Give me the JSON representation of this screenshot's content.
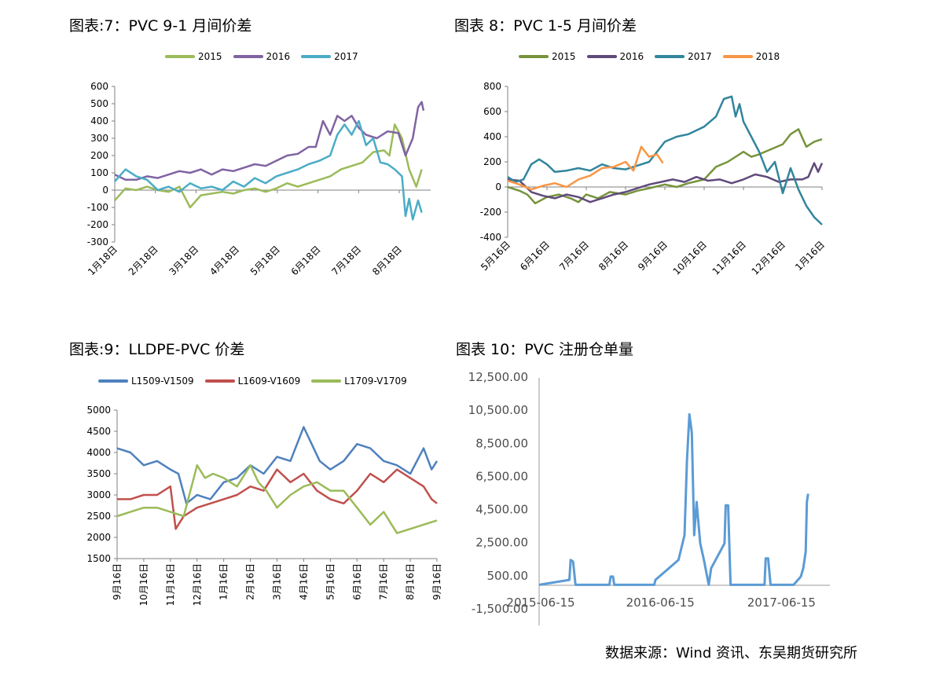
{
  "charts": [
    {
      "title": "图表:7：PVC 9-1 月间价差",
      "chart_data": {
        "type": "line",
        "yticks": [
          "600",
          "500",
          "400",
          "300",
          "200",
          "100",
          "0",
          "-100",
          "-200",
          "-300"
        ],
        "ylim": [
          -300,
          600
        ],
        "xticks": [
          "1月18日",
          "2月18日",
          "3月18日",
          "4月18日",
          "5月18日",
          "6月18日",
          "7月18日",
          "8月18日"
        ],
        "x_range": [
          0,
          8.8
        ],
        "series": [
          {
            "name": "2015",
            "color": "#9bbb59",
            "x": [
              0,
              0.3,
              0.6,
              0.9,
              1.2,
              1.5,
              1.8,
              2.1,
              2.4,
              2.7,
              3.0,
              3.3,
              3.6,
              3.9,
              4.2,
              4.5,
              4.8,
              5.1,
              5.4,
              5.7,
              6.0,
              6.3,
              6.6,
              6.9,
              7.2,
              7.5,
              7.65,
              7.8,
              8.0,
              8.2,
              8.4,
              8.55
            ],
            "values": [
              -60,
              10,
              0,
              20,
              0,
              -10,
              20,
              -100,
              -30,
              -20,
              -10,
              -20,
              0,
              10,
              -10,
              10,
              40,
              20,
              40,
              60,
              80,
              120,
              140,
              160,
              220,
              230,
              200,
              380,
              300,
              120,
              20,
              120
            ]
          },
          {
            "name": "2016",
            "color": "#8064a2",
            "x": [
              0,
              0.3,
              0.6,
              0.9,
              1.2,
              1.5,
              1.8,
              2.1,
              2.4,
              2.7,
              3.0,
              3.3,
              3.6,
              3.9,
              4.2,
              4.5,
              4.8,
              5.1,
              5.4,
              5.6,
              5.8,
              6.0,
              6.2,
              6.4,
              6.6,
              6.8,
              7.0,
              7.3,
              7.6,
              7.9,
              8.1,
              8.3,
              8.45,
              8.55,
              8.6
            ],
            "values": [
              90,
              60,
              60,
              80,
              70,
              90,
              110,
              100,
              120,
              90,
              120,
              110,
              130,
              150,
              140,
              170,
              200,
              210,
              250,
              250,
              400,
              320,
              430,
              400,
              430,
              360,
              320,
              300,
              340,
              330,
              200,
              300,
              480,
              510,
              460
            ]
          },
          {
            "name": "2017",
            "color": "#4bacc6",
            "x": [
              0,
              0.3,
              0.6,
              0.9,
              1.2,
              1.5,
              1.8,
              2.1,
              2.4,
              2.7,
              3.0,
              3.3,
              3.6,
              3.9,
              4.2,
              4.5,
              4.8,
              5.1,
              5.4,
              5.7,
              6.0,
              6.2,
              6.4,
              6.6,
              6.8,
              7.0,
              7.2,
              7.4,
              7.6,
              7.8,
              8.0,
              8.1,
              8.2,
              8.3,
              8.45,
              8.55
            ],
            "values": [
              50,
              120,
              80,
              60,
              0,
              20,
              -10,
              40,
              10,
              20,
              0,
              50,
              20,
              70,
              40,
              80,
              100,
              120,
              150,
              170,
              200,
              320,
              380,
              320,
              400,
              260,
              300,
              160,
              150,
              120,
              80,
              -150,
              -50,
              -170,
              -60,
              -130
            ]
          }
        ]
      }
    },
    {
      "title": "图表 8：PVC 1-5 月间价差",
      "chart_data": {
        "type": "line",
        "yticks": [
          "800",
          "600",
          "400",
          "200",
          "0",
          "-200",
          "-400"
        ],
        "ylim": [
          -400,
          800
        ],
        "xticks": [
          "5月16日",
          "6月16日",
          "7月16日",
          "8月16日",
          "9月16日",
          "10月16日",
          "11月16日",
          "12月16日",
          "1月16日"
        ],
        "x_range": [
          0,
          8
        ],
        "series": [
          {
            "name": "2015",
            "color": "#77933c",
            "x": [
              0,
              0.3,
              0.5,
              0.7,
              1.0,
              1.3,
              1.6,
              1.8,
              2.0,
              2.3,
              2.6,
              3.0,
              3.3,
              3.6,
              4.0,
              4.3,
              4.6,
              5.0,
              5.3,
              5.6,
              6.0,
              6.2,
              6.4,
              6.7,
              7.0,
              7.2,
              7.4,
              7.6,
              7.8,
              8.0
            ],
            "values": [
              0,
              -30,
              -60,
              -130,
              -80,
              -60,
              -90,
              -120,
              -60,
              -90,
              -40,
              -60,
              -30,
              -10,
              20,
              0,
              30,
              60,
              160,
              200,
              280,
              240,
              260,
              300,
              340,
              420,
              460,
              320,
              360,
              380
            ]
          },
          {
            "name": "2016",
            "color": "#604a7b",
            "x": [
              0,
              0.3,
              0.6,
              0.9,
              1.2,
              1.5,
              1.8,
              2.1,
              2.4,
              2.7,
              3.0,
              3.3,
              3.6,
              3.9,
              4.2,
              4.5,
              4.8,
              5.1,
              5.4,
              5.7,
              6.0,
              6.3,
              6.6,
              6.9,
              7.2,
              7.5,
              7.65,
              7.8,
              7.9,
              8.0
            ],
            "values": [
              60,
              50,
              -40,
              -70,
              -90,
              -60,
              -80,
              -120,
              -90,
              -60,
              -40,
              -10,
              20,
              40,
              60,
              40,
              80,
              50,
              60,
              30,
              60,
              100,
              80,
              40,
              60,
              60,
              80,
              190,
              120,
              190
            ]
          },
          {
            "name": "2017",
            "color": "#31859c",
            "x": [
              0,
              0.2,
              0.4,
              0.6,
              0.8,
              1.0,
              1.2,
              1.5,
              1.8,
              2.1,
              2.4,
              2.7,
              3.0,
              3.3,
              3.6,
              4.0,
              4.3,
              4.6,
              5.0,
              5.3,
              5.5,
              5.7,
              5.8,
              5.9,
              6.0,
              6.2,
              6.4,
              6.6,
              6.8,
              7.0,
              7.2,
              7.4,
              7.6,
              7.8,
              8.0
            ],
            "values": [
              80,
              40,
              60,
              180,
              220,
              180,
              120,
              130,
              150,
              130,
              180,
              150,
              140,
              170,
              200,
              360,
              400,
              420,
              480,
              560,
              700,
              720,
              560,
              660,
              520,
              400,
              280,
              120,
              200,
              -50,
              150,
              -20,
              -150,
              -240,
              -300
            ]
          },
          {
            "name": "2018",
            "color": "#f79646",
            "x": [
              0,
              0.3,
              0.6,
              0.9,
              1.2,
              1.5,
              1.8,
              2.1,
              2.4,
              2.7,
              3.0,
              3.2,
              3.4,
              3.6,
              3.8,
              3.95
            ],
            "values": [
              50,
              20,
              -20,
              10,
              30,
              0,
              60,
              90,
              150,
              160,
              200,
              130,
              320,
              240,
              260,
              190
            ]
          }
        ]
      }
    },
    {
      "title": "图表:9：LLDPE-PVC 价差",
      "chart_data": {
        "type": "line",
        "yticks": [
          "5000",
          "4500",
          "4000",
          "3500",
          "3000",
          "2500",
          "2000",
          "1500"
        ],
        "ylim": [
          1500,
          5000
        ],
        "xticks": [
          "9月16日",
          "10月16日",
          "11月16日",
          "12月16日",
          "1月16日",
          "2月16日",
          "3月16日",
          "4月16日",
          "5月16日",
          "6月16日",
          "7月16日",
          "8月16日",
          "9月16日"
        ],
        "x_range": [
          0,
          12
        ],
        "series": [
          {
            "name": "L1509-V1509",
            "color": "#4f81bd",
            "x": [
              0,
              0.5,
              1.0,
              1.5,
              2.0,
              2.3,
              2.6,
              3.0,
              3.5,
              4.0,
              4.5,
              5.0,
              5.5,
              6.0,
              6.5,
              7.0,
              7.3,
              7.6,
              8.0,
              8.5,
              9.0,
              9.5,
              10.0,
              10.5,
              11.0,
              11.5,
              11.8,
              12.0
            ],
            "values": [
              4100,
              4000,
              3700,
              3800,
              3600,
              3500,
              2800,
              3000,
              2900,
              3300,
              3400,
              3700,
              3500,
              3900,
              3800,
              4600,
              4200,
              3800,
              3600,
              3800,
              4200,
              4100,
              3800,
              3700,
              3500,
              4100,
              3600,
              3800
            ]
          },
          {
            "name": "L1609-V1609",
            "color": "#c0504d",
            "x": [
              0,
              0.5,
              1.0,
              1.5,
              2.0,
              2.2,
              2.5,
              3.0,
              3.5,
              4.0,
              4.5,
              5.0,
              5.5,
              6.0,
              6.5,
              7.0,
              7.5,
              8.0,
              8.5,
              9.0,
              9.5,
              10.0,
              10.5,
              11.0,
              11.5,
              11.8,
              12.0
            ],
            "values": [
              2900,
              2900,
              3000,
              3000,
              3200,
              2200,
              2500,
              2700,
              2800,
              2900,
              3000,
              3200,
              3100,
              3600,
              3300,
              3500,
              3100,
              2900,
              2800,
              3100,
              3500,
              3300,
              3600,
              3400,
              3200,
              2900,
              2800
            ]
          },
          {
            "name": "L1709-V1709",
            "color": "#9bbb59",
            "x": [
              0,
              0.5,
              1.0,
              1.5,
              2.0,
              2.5,
              3.0,
              3.3,
              3.6,
              4.0,
              4.5,
              5.0,
              5.3,
              5.6,
              6.0,
              6.5,
              7.0,
              7.5,
              8.0,
              8.5,
              9.0,
              9.5,
              10.0,
              10.5,
              11.0,
              11.5,
              12.0
            ],
            "values": [
              2500,
              2600,
              2700,
              2700,
              2600,
              2500,
              3700,
              3400,
              3500,
              3400,
              3200,
              3700,
              3300,
              3100,
              2700,
              3000,
              3200,
              3300,
              3100,
              3100,
              2700,
              2300,
              2600,
              2100,
              2200,
              2300,
              2400
            ]
          }
        ]
      }
    },
    {
      "title": "图表 10：PVC 注册仓单量",
      "chart_data": {
        "type": "line",
        "yticks": [
          "12,500.00",
          "10,500.00",
          "8,500.00",
          "6,500.00",
          "4,500.00",
          "2,500.00",
          "500.00",
          "-1,500.00"
        ],
        "ylim": [
          -1500,
          12500
        ],
        "xticks": [
          "2015-06-15",
          "2016-06-15",
          "2017-06-15"
        ],
        "x_range": [
          0,
          24
        ],
        "series": [
          {
            "name": "注册仓单",
            "color": "#5b9bd5",
            "x": [
              0,
              2.5,
              2.6,
              2.8,
              3.0,
              5.8,
              5.9,
              6.1,
              6.2,
              9.5,
              9.6,
              11.5,
              12.0,
              12.2,
              12.4,
              12.6,
              12.8,
              13.0,
              13.3,
              13.6,
              14.0,
              14.2,
              15.3,
              15.4,
              15.6,
              15.8,
              17.0,
              18.6,
              18.7,
              18.9,
              19.1,
              20.0,
              21.0,
              21.6,
              21.8,
              22.0,
              22.1,
              22.2
            ],
            "values": [
              0,
              300,
              1500,
              1400,
              0,
              0,
              500,
              500,
              0,
              0,
              300,
              1500,
              3000,
              7500,
              10300,
              9200,
              3000,
              5000,
              2500,
              1500,
              0,
              1000,
              2500,
              4800,
              4800,
              0,
              0,
              0,
              1600,
              1600,
              0,
              0,
              0,
              500,
              1000,
              2000,
              5000,
              5500
            ]
          }
        ]
      }
    }
  ],
  "footer": {
    "source": "数据来源：Wind 资讯、东吴期货研究所"
  }
}
